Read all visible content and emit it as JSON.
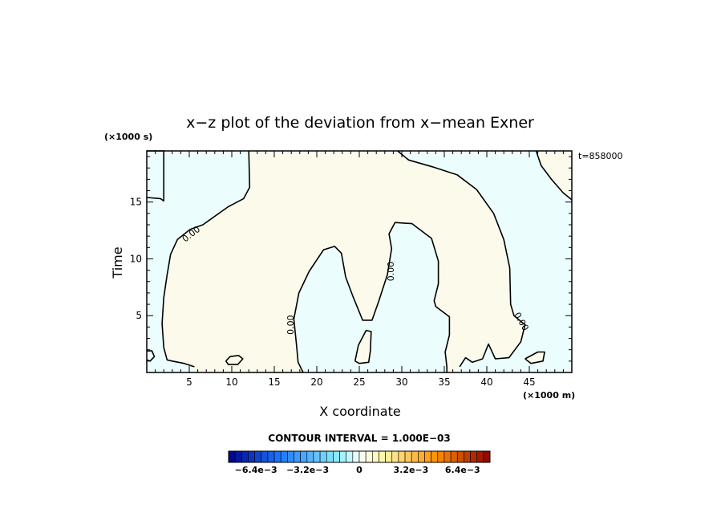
{
  "chart_data": {
    "type": "contour",
    "title": "x−z plot of the deviation from x−mean Exner",
    "xlabel": "X coordinate",
    "ylabel": "Time",
    "x_unit": "(×1000 m)",
    "y_unit": "(×1000 s)",
    "time_label": "t=858000",
    "xlim": [
      0,
      50
    ],
    "ylim": [
      0,
      19.5
    ],
    "x_ticks": [
      "5",
      "10",
      "15",
      "20",
      "25",
      "30",
      "35",
      "40",
      "45"
    ],
    "y_ticks": [
      "5",
      "10",
      "15"
    ],
    "x_tick_values": [
      5,
      10,
      15,
      20,
      25,
      30,
      35,
      40,
      45
    ],
    "y_tick_values": [
      5,
      10,
      15
    ],
    "contour_label": "0.00",
    "contour_interval_text": "CONTOUR INTERVAL = 1.000E−03",
    "colorbar": {
      "labels": [
        "−6.4e−3",
        "−3.2e−3",
        "0",
        "3.2e−3",
        "6.4e−3"
      ],
      "label_values": [
        -0.0064,
        -0.0032,
        0,
        0.0032,
        0.0064
      ],
      "range": [
        -0.0081,
        0.0081
      ],
      "n_bins": 40,
      "colors": {
        "negative_dark": "#00008c",
        "negative_mid": "#1e78ff",
        "negative_light": "#8ceeff",
        "near_zero": "#f8fdfd",
        "positive_light": "#fff5a0",
        "positive_mid": "#ff8c00",
        "positive_dark": "#8c0000"
      }
    },
    "fill_colors": {
      "negative": "#ebfdfd",
      "positive": "#fcfaeb"
    },
    "contours": [
      {
        "name": "top-left-region",
        "points": [
          [
            0,
            19.5
          ],
          [
            2,
            19.5
          ],
          [
            2,
            15.1
          ],
          [
            1.6,
            15.3
          ],
          [
            0,
            15.4
          ]
        ]
      },
      {
        "name": "main-left-boundary",
        "points": [
          [
            12,
            19.5
          ],
          [
            12.1,
            16.3
          ],
          [
            11.4,
            15.3
          ],
          [
            9.6,
            14.6
          ],
          [
            6.6,
            13.0
          ],
          [
            5.1,
            12.6
          ],
          [
            3.6,
            11.7
          ],
          [
            2.8,
            10.4
          ],
          [
            2.4,
            8.6
          ],
          [
            2.0,
            6.6
          ],
          [
            1.8,
            4.3
          ],
          [
            2.0,
            2.2
          ],
          [
            2.4,
            1.1
          ],
          [
            3.0,
            1.0
          ],
          [
            4.4,
            0.8
          ],
          [
            5.6,
            0.5
          ]
        ]
      },
      {
        "name": "center-left-lobe",
        "points": [
          [
            18.4,
            0
          ],
          [
            17.8,
            0.9
          ],
          [
            17.6,
            2.5
          ],
          [
            17.3,
            4.7
          ],
          [
            17.9,
            7.0
          ],
          [
            19.1,
            8.9
          ],
          [
            20.8,
            10.8
          ],
          [
            22.1,
            11.1
          ],
          [
            22.9,
            10.5
          ],
          [
            23.4,
            8.4
          ],
          [
            24.3,
            6.6
          ],
          [
            25.4,
            4.6
          ],
          [
            26.5,
            4.6
          ],
          [
            27.3,
            6.3
          ],
          [
            28.3,
            8.6
          ],
          [
            28.8,
            10.9
          ],
          [
            28.5,
            12.2
          ],
          [
            29.2,
            13.2
          ],
          [
            31.2,
            13.1
          ],
          [
            33.5,
            11.8
          ],
          [
            34.3,
            9.8
          ],
          [
            34.3,
            7.8
          ],
          [
            33.8,
            6.3
          ],
          [
            34.0,
            5.8
          ],
          [
            35.6,
            4.9
          ],
          [
            35.6,
            3.3
          ],
          [
            35.1,
            1.8
          ],
          [
            35.3,
            0.5
          ],
          [
            35.3,
            0
          ]
        ]
      },
      {
        "name": "center-bottom-blob",
        "points": [
          [
            24.5,
            1.0
          ],
          [
            24.9,
            2.4
          ],
          [
            25.8,
            3.7
          ],
          [
            26.4,
            3.6
          ],
          [
            26.3,
            1.9
          ],
          [
            26.1,
            0.9
          ],
          [
            25.0,
            0.8
          ],
          [
            24.5,
            1.0
          ]
        ]
      },
      {
        "name": "right-arc",
        "points": [
          [
            29.5,
            19.5
          ],
          [
            30.8,
            18.7
          ],
          [
            33.6,
            18.1
          ],
          [
            36.5,
            17.4
          ],
          [
            38.8,
            16.1
          ],
          [
            40.8,
            14.0
          ],
          [
            42.0,
            11.7
          ],
          [
            42.7,
            9.2
          ],
          [
            42.8,
            6.0
          ],
          [
            43.2,
            5.0
          ],
          [
            44.5,
            4.2
          ],
          [
            44.0,
            2.7
          ],
          [
            42.6,
            1.3
          ],
          [
            41.0,
            1.2
          ],
          [
            40.2,
            2.5
          ],
          [
            39.5,
            1.2
          ],
          [
            38.3,
            0.9
          ],
          [
            37.5,
            1.3
          ],
          [
            36.8,
            0.5
          ]
        ]
      },
      {
        "name": "bottom-right-blob",
        "points": [
          [
            44.5,
            1.2
          ],
          [
            46.0,
            1.8
          ],
          [
            46.8,
            1.8
          ],
          [
            46.6,
            1.0
          ],
          [
            45.2,
            0.8
          ],
          [
            44.5,
            1.2
          ]
        ]
      },
      {
        "name": "top-right-region",
        "points": [
          [
            45.8,
            19.5
          ],
          [
            46.4,
            18.2
          ],
          [
            47.6,
            17.0
          ],
          [
            49.0,
            15.8
          ],
          [
            50,
            15.2
          ]
        ]
      },
      {
        "name": "bottom-left-blob",
        "points": [
          [
            0,
            1.9
          ],
          [
            0.6,
            1.9
          ],
          [
            0.9,
            1.4
          ],
          [
            0.4,
            1.0
          ],
          [
            0,
            1.1
          ]
        ]
      },
      {
        "name": "bottom-small-blob",
        "points": [
          [
            9.3,
            1.0
          ],
          [
            9.8,
            1.4
          ],
          [
            10.8,
            1.5
          ],
          [
            11.3,
            1.2
          ],
          [
            10.7,
            0.7
          ],
          [
            9.6,
            0.7
          ],
          [
            9.3,
            1.0
          ]
        ]
      }
    ],
    "label_positions": [
      {
        "x": 5.2,
        "y": 12.2,
        "rotation": -38
      },
      {
        "x": 16.9,
        "y": 4.2,
        "rotation": -90
      },
      {
        "x": 28.7,
        "y": 8.9,
        "rotation": -90
      },
      {
        "x": 44.1,
        "y": 4.5,
        "rotation": 60
      }
    ]
  }
}
